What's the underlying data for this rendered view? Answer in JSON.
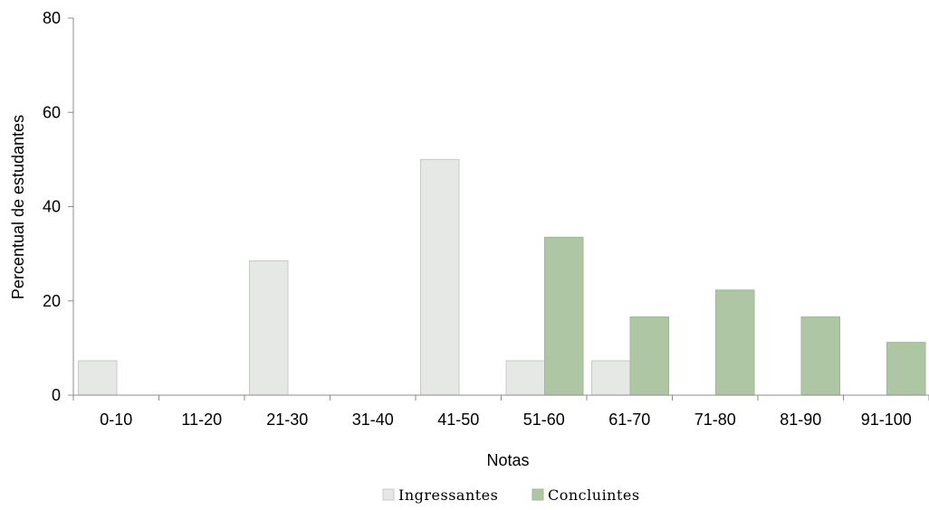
{
  "chart_data": {
    "type": "bar",
    "categories": [
      "0-10",
      "11-20",
      "21-30",
      "31-40",
      "41-50",
      "51-60",
      "61-70",
      "71-80",
      "81-90",
      "91-100"
    ],
    "series": [
      {
        "name": "Ingressantes",
        "color": "#e6e8e6",
        "values": [
          7.3,
          0,
          28.5,
          0,
          50,
          7.3,
          7.3,
          0,
          0,
          0
        ]
      },
      {
        "name": "Concluintes",
        "color": "#aec6a4",
        "values": [
          0,
          0,
          0,
          0,
          0,
          33.5,
          16.6,
          22.3,
          16.6,
          11.2
        ]
      }
    ],
    "xlabel": "Notas",
    "ylabel": "Percentual de estudantes",
    "ylim": [
      0,
      80
    ],
    "yticks": [
      "0",
      "20",
      "40",
      "60",
      "80"
    ],
    "grid": false,
    "legend_position": "bottom"
  }
}
